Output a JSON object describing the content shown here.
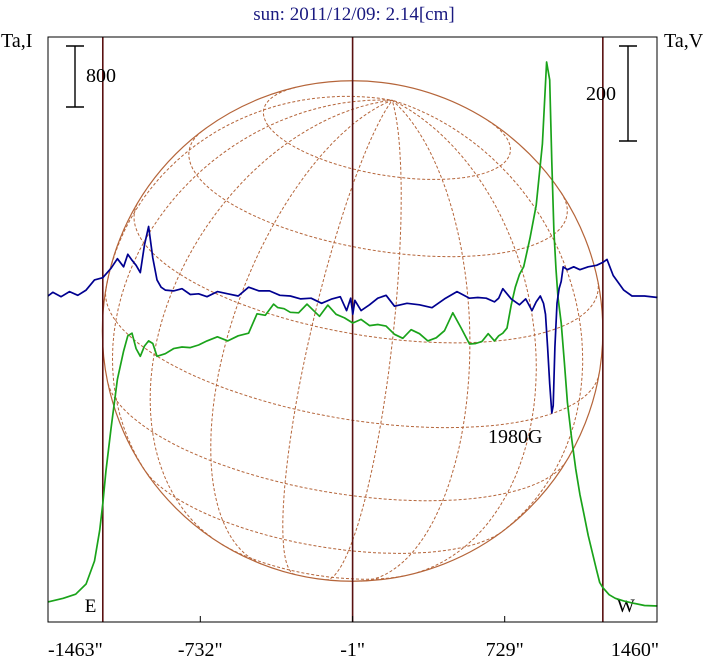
{
  "chart_data": {
    "type": "line",
    "title": "sun: 2011/12/09: 2.14[cm]",
    "left_axis_label": "Ta,I",
    "right_axis_label": "Ta,V",
    "xlim": [
      -1463,
      1460
    ],
    "x_ticks": [
      {
        "value": -1463,
        "label": "-1463\""
      },
      {
        "value": -732,
        "label": "-732\""
      },
      {
        "value": -1,
        "label": "-1\""
      },
      {
        "value": 729,
        "label": "729\""
      },
      {
        "value": 1460,
        "label": "1460\""
      }
    ],
    "vertical_lines": [
      {
        "x": -1200,
        "label": "E"
      },
      {
        "x": -1
      },
      {
        "x": 1200,
        "label": "W"
      }
    ],
    "scale_bar_left": {
      "label": "800",
      "value": 800
    },
    "scale_bar_right": {
      "label": "200",
      "value": 200
    },
    "annotation": {
      "text": "1980G",
      "x": 950
    },
    "colors": {
      "stokes_i": "#1aa31a",
      "stokes_v": "#000090",
      "disk": "#b5653a",
      "limb_lines": "#5a1010",
      "title": "#1a1a80"
    },
    "series": [
      {
        "key": "stokes_i",
        "color": "#1aa31a",
        "x": [
          -1463,
          -1390,
          -1330,
          -1280,
          -1240,
          -1215,
          -1200,
          -1185,
          -1160,
          -1130,
          -1100,
          -1080,
          -1060,
          -1040,
          -1020,
          -1000,
          -980,
          -960,
          -940,
          -900,
          -860,
          -820,
          -780,
          -740,
          -700,
          -650,
          -600,
          -550,
          -500,
          -460,
          -420,
          -380,
          -360,
          -330,
          -300,
          -260,
          -220,
          -190,
          -160,
          -120,
          -80,
          -40,
          0,
          40,
          80,
          120,
          160,
          200,
          240,
          280,
          320,
          360,
          400,
          440,
          480,
          520,
          560,
          590,
          620,
          650,
          680,
          700,
          720,
          740,
          760,
          780,
          800,
          820,
          850,
          880,
          910,
          930,
          945,
          955,
          965,
          975,
          985,
          1000,
          1015,
          1030,
          1050,
          1070,
          1090,
          1110,
          1130,
          1150,
          1170,
          1185,
          1195,
          1200,
          1215,
          1230,
          1260,
          1300,
          1340,
          1400,
          1463
        ],
        "y": [
          -400,
          -330,
          -250,
          -50,
          400,
          1000,
          1520,
          2150,
          3000,
          3950,
          4500,
          4800,
          4850,
          4550,
          4400,
          4600,
          4700,
          4650,
          4400,
          4450,
          4550,
          4580,
          4570,
          4620,
          4700,
          4780,
          4700,
          4800,
          4850,
          5230,
          5200,
          5420,
          5350,
          5330,
          5260,
          5250,
          5420,
          5300,
          5180,
          5400,
          5220,
          5150,
          5050,
          5120,
          5000,
          5020,
          4990,
          4830,
          4750,
          4920,
          4840,
          4700,
          4760,
          4900,
          5250,
          4950,
          4640,
          4650,
          4690,
          4840,
          4700,
          4800,
          4850,
          4950,
          5400,
          5750,
          6000,
          6150,
          6700,
          7350,
          8550,
          10150,
          9800,
          8200,
          6850,
          6100,
          5550,
          5050,
          4300,
          3500,
          2800,
          2200,
          1700,
          1300,
          900,
          560,
          220,
          -20,
          -90,
          -120,
          -190,
          -260,
          -330,
          -380,
          -420,
          -470,
          -480
        ]
      },
      {
        "key": "stokes_v",
        "color": "#000090",
        "x": [
          -1463,
          -1440,
          -1400,
          -1360,
          -1320,
          -1280,
          -1240,
          -1200,
          -1160,
          -1130,
          -1100,
          -1080,
          -1060,
          -1040,
          -1020,
          -1000,
          -980,
          -960,
          -940,
          -920,
          -900,
          -860,
          -820,
          -780,
          -740,
          -700,
          -650,
          -600,
          -550,
          -500,
          -450,
          -400,
          -350,
          -300,
          -250,
          -200,
          -150,
          -100,
          -60,
          -30,
          -10,
          0,
          10,
          40,
          80,
          120,
          160,
          200,
          260,
          320,
          380,
          440,
          500,
          560,
          600,
          640,
          680,
          700,
          720,
          760,
          800,
          830,
          860,
          880,
          900,
          915,
          925,
          935,
          945,
          955,
          962,
          970,
          980,
          990,
          1000,
          1010,
          1030,
          1060,
          1090,
          1130,
          1170,
          1200,
          1220,
          1250,
          1280,
          1300,
          1340,
          1400,
          1463
        ],
        "y": [
          0,
          5,
          -1,
          6,
          1,
          8,
          22,
          25,
          38,
          51,
          40,
          57,
          49,
          42,
          32,
          70,
          95,
          52,
          22,
          12,
          8,
          7,
          10,
          2,
          3,
          -1,
          6,
          3,
          0,
          12,
          7,
          7,
          1,
          0,
          -4,
          -3,
          -10,
          -4,
          -1,
          -20,
          -3,
          -25,
          -6,
          -20,
          -12,
          -3,
          1,
          -14,
          -10,
          -12,
          -16,
          -4,
          6,
          -3,
          -2,
          -3,
          -8,
          -3,
          10,
          -4,
          -12,
          -4,
          -20,
          -8,
          0,
          -10,
          -25,
          -70,
          -120,
          -160,
          -150,
          -70,
          -10,
          10,
          20,
          40,
          36,
          40,
          36,
          40,
          42,
          46,
          50,
          28,
          16,
          8,
          0,
          0,
          -2
        ]
      }
    ]
  }
}
